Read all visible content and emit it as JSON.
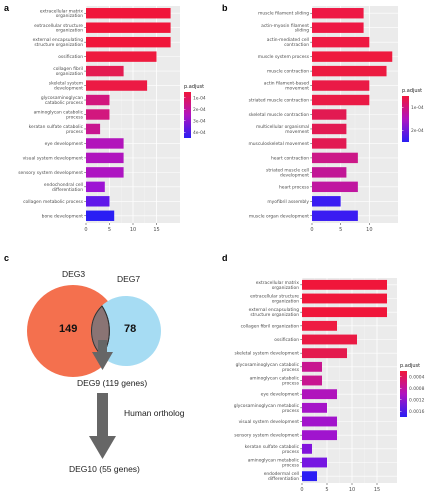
{
  "panels": {
    "a": "a",
    "b": "b",
    "c": "c",
    "d": "d"
  },
  "venn": {
    "set1_name": "DEG3",
    "set2_name": "DEG7",
    "only1": "149",
    "only2": "78",
    "deg9": "DEG9 (119 genes)",
    "arrow_label": "Human ortholog",
    "deg10": "DEG10 (55 genes)",
    "set1_color": "#f4704e",
    "set2_color": "#a6dcf3",
    "overlap_color": "#8a7474",
    "arrow_color": "#666666"
  },
  "chart_data": [
    {
      "panel": "a",
      "type": "bar",
      "orientation": "horizontal",
      "categories": [
        "extracellular matrix organization",
        "extracellular structure organization",
        "external encapsulating structure organization",
        "ossification",
        "collagen fibril organization",
        "skeletal system development",
        "glycosaminoglycan catabolic process",
        "aminoglycan catabolic process",
        "keratan sulfate catabolic process",
        "eye development",
        "visual system development",
        "sensory system development",
        "endochondral cell differentiation",
        "collagen metabolic process",
        "bone development"
      ],
      "values": [
        18,
        18,
        18,
        15,
        8,
        13,
        5,
        5,
        3,
        8,
        8,
        8,
        4,
        5,
        6
      ],
      "colors": [
        "#f0163a",
        "#f0163a",
        "#f0163a",
        "#ee1a3e",
        "#e41c52",
        "#ec1a44",
        "#d2177e",
        "#d2177e",
        "#c81690",
        "#b214bb",
        "#b014be",
        "#ae14c2",
        "#9d14d4",
        "#6018ea",
        "#2a1ef4"
      ],
      "xlim": [
        0,
        20
      ],
      "xticks": [
        "0",
        "5",
        "10",
        "15"
      ],
      "xtick_values": [
        0,
        5,
        10,
        15
      ],
      "legend_title": "p.adjust",
      "legend_labels": [
        "1e-04",
        "2e-04",
        "3e-04",
        "4e-04"
      ],
      "legend_colors": [
        "#f0163a",
        "#b014c0",
        "#2a1ef4"
      ]
    },
    {
      "panel": "b",
      "type": "bar",
      "orientation": "horizontal",
      "categories": [
        "muscle filament sliding",
        "actin-myosin filament sliding",
        "actin-mediated cell contraction",
        "muscle system process",
        "muscle contraction",
        "actin filament-based movement",
        "striated muscle contraction",
        "skeletal muscle contraction",
        "multicellular organismal movement",
        "musculoskeletal movement",
        "heart contraction",
        "striated muscle cell development",
        "heart process",
        "myofibril assembly",
        "muscle organ development"
      ],
      "values": [
        9,
        9,
        10,
        14,
        13,
        10,
        10,
        6,
        6,
        6,
        8,
        6,
        8,
        5,
        8
      ],
      "colors": [
        "#ee1844",
        "#ee1844",
        "#ee1a42",
        "#ee1a3e",
        "#ec1a40",
        "#ea1a46",
        "#ea1a46",
        "#e21a52",
        "#e21a52",
        "#e21a52",
        "#cc1888",
        "#c21696",
        "#c016a0",
        "#3a1cf2",
        "#3a1cf2"
      ],
      "xlim": [
        0,
        15
      ],
      "xticks": [
        "0",
        "5",
        "10"
      ],
      "xtick_values": [
        0,
        5,
        10
      ],
      "legend_title": "p.adjust",
      "legend_labels": [
        "1e-04",
        "2e-04"
      ],
      "legend_colors": [
        "#f0163a",
        "#b014c0",
        "#2a1ef4"
      ]
    },
    {
      "panel": "d",
      "type": "bar",
      "orientation": "horizontal",
      "categories": [
        "extracellular matrix organization",
        "extracellular structure organization",
        "external encapsulating structure organization",
        "collagen fibril organization",
        "ossification",
        "skeletal system development",
        "glycosaminoglycan catabolic process",
        "aminoglycan catabolic process",
        "eye development",
        "glycosaminoglycan metabolic process",
        "visual system development",
        "sensory system development",
        "keratan sulfate catabolic process",
        "aminoglycan metabolic process",
        "endodermal cell differentiation"
      ],
      "values": [
        17,
        17,
        17,
        7,
        11,
        9,
        4,
        4,
        7,
        5,
        7,
        7,
        2,
        5,
        3
      ],
      "colors": [
        "#f0163a",
        "#f0163a",
        "#f0163a",
        "#ee1c42",
        "#ea1a44",
        "#e41a4e",
        "#c81690",
        "#c81690",
        "#b014bc",
        "#a614c8",
        "#a214cc",
        "#a014ce",
        "#8214dc",
        "#7616e2",
        "#2a1ef4"
      ],
      "xlim": [
        0,
        19
      ],
      "xticks": [
        "0",
        "5",
        "10",
        "15"
      ],
      "xtick_values": [
        0,
        5,
        10,
        15
      ],
      "legend_title": "p.adjust",
      "legend_labels": [
        "0.0004",
        "0.0008",
        "0.0012",
        "0.0016"
      ],
      "legend_colors": [
        "#f0163a",
        "#b014c0",
        "#2a1ef4"
      ]
    }
  ]
}
